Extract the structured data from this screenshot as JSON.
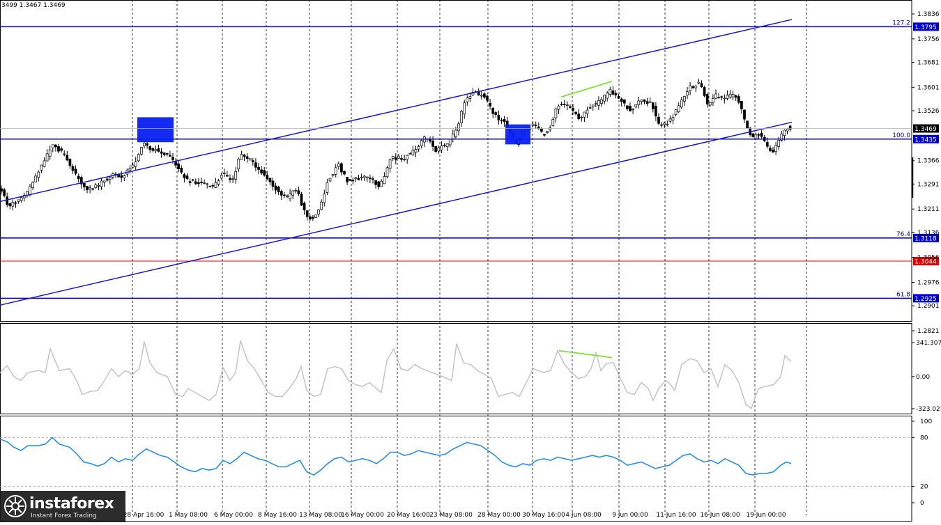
{
  "header": {
    "ohlc_text": "3499 1.3467 1.3469"
  },
  "watermark": {
    "brand": "instaforex",
    "tagline": "Instant Forex Trading"
  },
  "colors": {
    "candle": "#000000",
    "level_line": "#0000cc",
    "support_line": "#e00000",
    "channel": "#1a1acc",
    "divergence": "#7fe03c",
    "box": "#0a20f0",
    "cci_line": "#c0c0c0",
    "rsi_line": "#2a8fe8",
    "grid": "#000000"
  },
  "chart_data": [
    {
      "type": "candlestick",
      "name": "price",
      "ylim": [
        1.2821,
        1.3836
      ],
      "y_ticks": [
        "1.3836",
        "1.3756",
        "1.3681",
        "1.3601",
        "1.3526",
        "1.3366",
        "1.3291",
        "1.3211",
        "1.3136",
        "1.3056",
        "1.2976",
        "1.2901",
        "1.2821"
      ],
      "x_ticks": [
        "28 Apr 16:00",
        "1 May 08:00",
        "6 May 00:00",
        "8 May 16:00",
        "13 May 08:00",
        "16 May 00:00",
        "20 May 16:00",
        "23 May 08:00",
        "28 May 00:00",
        "30 May 16:00",
        "4 Jun 08:00",
        "9 Jun 00:00",
        "11 Jun 16:00",
        "16 Jun 08:00",
        "19 Jun 00:00"
      ],
      "current_price": "1.3469",
      "levels": [
        {
          "value": 1.3795,
          "label": "1.3795",
          "fib": "127.2"
        },
        {
          "value": 1.3435,
          "label": "1.3435",
          "fib": "100.0"
        },
        {
          "value": 1.3118,
          "label": "1.3118",
          "fib": "76.4"
        },
        {
          "value": 1.3044,
          "label": "1.3044",
          "fib": ""
        },
        {
          "value": 1.2925,
          "label": "1.2925",
          "fib": "61.8"
        }
      ],
      "path": [
        [
          0,
          1.328
        ],
        [
          12,
          1.322
        ],
        [
          25,
          1.3235
        ],
        [
          40,
          1.3265
        ],
        [
          55,
          1.333
        ],
        [
          75,
          1.3415
        ],
        [
          90,
          1.339
        ],
        [
          110,
          1.3315
        ],
        [
          125,
          1.3275
        ],
        [
          140,
          1.3285
        ],
        [
          160,
          1.332
        ],
        [
          175,
          1.3315
        ],
        [
          190,
          1.335
        ],
        [
          200,
          1.3385
        ],
        [
          205,
          1.3425
        ],
        [
          215,
          1.3405
        ],
        [
          230,
          1.3395
        ],
        [
          245,
          1.3375
        ],
        [
          255,
          1.334
        ],
        [
          270,
          1.33
        ],
        [
          290,
          1.3295
        ],
        [
          305,
          1.328
        ],
        [
          320,
          1.3325
        ],
        [
          333,
          1.33
        ],
        [
          345,
          1.3385
        ],
        [
          360,
          1.3365
        ],
        [
          375,
          1.333
        ],
        [
          390,
          1.329
        ],
        [
          410,
          1.3245
        ],
        [
          425,
          1.3275
        ],
        [
          437,
          1.32
        ],
        [
          448,
          1.3175
        ],
        [
          460,
          1.322
        ],
        [
          470,
          1.33
        ],
        [
          485,
          1.3355
        ],
        [
          498,
          1.33
        ],
        [
          515,
          1.331
        ],
        [
          530,
          1.3315
        ],
        [
          545,
          1.328
        ],
        [
          560,
          1.3375
        ],
        [
          580,
          1.3375
        ],
        [
          598,
          1.3405
        ],
        [
          610,
          1.3445
        ],
        [
          625,
          1.34
        ],
        [
          640,
          1.3415
        ],
        [
          655,
          1.3465
        ],
        [
          668,
          1.3565
        ],
        [
          680,
          1.3585
        ],
        [
          695,
          1.357
        ],
        [
          710,
          1.351
        ],
        [
          725,
          1.3485
        ],
        [
          740,
          1.342
        ],
        [
          752,
          1.3465
        ],
        [
          765,
          1.348
        ],
        [
          780,
          1.345
        ],
        [
          790,
          1.3475
        ],
        [
          800,
          1.3545
        ],
        [
          815,
          1.354
        ],
        [
          830,
          1.35
        ],
        [
          845,
          1.3535
        ],
        [
          860,
          1.3555
        ],
        [
          875,
          1.359
        ],
        [
          890,
          1.356
        ],
        [
          905,
          1.3525
        ],
        [
          920,
          1.356
        ],
        [
          935,
          1.355
        ],
        [
          945,
          1.348
        ],
        [
          960,
          1.349
        ],
        [
          975,
          1.3545
        ],
        [
          990,
          1.36
        ],
        [
          1005,
          1.3615
        ],
        [
          1015,
          1.3545
        ],
        [
          1025,
          1.3575
        ],
        [
          1040,
          1.3565
        ],
        [
          1050,
          1.358
        ],
        [
          1062,
          1.355
        ],
        [
          1070,
          1.3475
        ],
        [
          1080,
          1.344
        ],
        [
          1090,
          1.3455
        ],
        [
          1100,
          1.341
        ],
        [
          1108,
          1.3395
        ],
        [
          1120,
          1.3445
        ],
        [
          1130,
          1.3475
        ],
        [
          1136,
          1.3469
        ]
      ],
      "channel_lines": [
        {
          "from": [
            0,
            1.3235
          ],
          "to": [
            1136,
            1.3818
          ]
        },
        {
          "from": [
            0,
            1.2903
          ],
          "to": [
            1136,
            1.3489
          ]
        }
      ],
      "boxes": [
        {
          "from": [
            197,
            1.3505
          ],
          "to": [
            249,
            1.3425
          ]
        },
        {
          "from": [
            725,
            1.3482
          ],
          "to": [
            761,
            1.3418
          ]
        }
      ],
      "divergence": {
        "from": [
          805,
          1.357
        ],
        "to": [
          878,
          1.362
        ]
      }
    },
    {
      "type": "line",
      "name": "CCI",
      "ylim": [
        -323.021,
        341.3079
      ],
      "y_ticks": [
        "341.3079",
        "0.00",
        "-323.021"
      ],
      "values": [
        [
          0,
          40
        ],
        [
          10,
          110
        ],
        [
          20,
          0
        ],
        [
          30,
          -40
        ],
        [
          40,
          40
        ],
        [
          55,
          60
        ],
        [
          65,
          40
        ],
        [
          72,
          280
        ],
        [
          85,
          60
        ],
        [
          100,
          80
        ],
        [
          110,
          -40
        ],
        [
          118,
          -180
        ],
        [
          130,
          -150
        ],
        [
          140,
          -140
        ],
        [
          150,
          -40
        ],
        [
          160,
          80
        ],
        [
          170,
          0
        ],
        [
          180,
          60
        ],
        [
          190,
          20
        ],
        [
          200,
          80
        ],
        [
          207,
          350
        ],
        [
          215,
          140
        ],
        [
          225,
          40
        ],
        [
          240,
          0
        ],
        [
          252,
          -180
        ],
        [
          262,
          -200
        ],
        [
          270,
          -120
        ],
        [
          280,
          -160
        ],
        [
          290,
          -200
        ],
        [
          300,
          -240
        ],
        [
          310,
          -180
        ],
        [
          320,
          90
        ],
        [
          330,
          -40
        ],
        [
          338,
          40
        ],
        [
          345,
          360
        ],
        [
          355,
          160
        ],
        [
          365,
          80
        ],
        [
          375,
          -40
        ],
        [
          385,
          -160
        ],
        [
          395,
          -200
        ],
        [
          405,
          -200
        ],
        [
          415,
          -120
        ],
        [
          425,
          -20
        ],
        [
          432,
          100
        ],
        [
          440,
          -140
        ],
        [
          450,
          -200
        ],
        [
          460,
          -180
        ],
        [
          470,
          80
        ],
        [
          480,
          100
        ],
        [
          490,
          80
        ],
        [
          500,
          -40
        ],
        [
          510,
          -80
        ],
        [
          520,
          -100
        ],
        [
          530,
          -60
        ],
        [
          540,
          -120
        ],
        [
          547,
          -160
        ],
        [
          555,
          160
        ],
        [
          565,
          280
        ],
        [
          575,
          80
        ],
        [
          585,
          60
        ],
        [
          595,
          120
        ],
        [
          605,
          80
        ],
        [
          620,
          40
        ],
        [
          635,
          0
        ],
        [
          648,
          -40
        ],
        [
          655,
          330
        ],
        [
          665,
          140
        ],
        [
          675,
          120
        ],
        [
          685,
          60
        ],
        [
          695,
          20
        ],
        [
          705,
          -20
        ],
        [
          715,
          -200
        ],
        [
          725,
          -180
        ],
        [
          735,
          -160
        ],
        [
          745,
          -200
        ],
        [
          755,
          -60
        ],
        [
          765,
          80
        ],
        [
          780,
          40
        ],
        [
          790,
          60
        ],
        [
          800,
          260
        ],
        [
          810,
          120
        ],
        [
          820,
          40
        ],
        [
          830,
          -20
        ],
        [
          840,
          0
        ],
        [
          848,
          80
        ],
        [
          855,
          240
        ],
        [
          862,
          60
        ],
        [
          870,
          130
        ],
        [
          880,
          140
        ],
        [
          890,
          -20
        ],
        [
          900,
          -160
        ],
        [
          910,
          -180
        ],
        [
          920,
          -60
        ],
        [
          930,
          -120
        ],
        [
          937,
          -240
        ],
        [
          945,
          -120
        ],
        [
          955,
          -40
        ],
        [
          962,
          -80
        ],
        [
          968,
          -140
        ],
        [
          978,
          120
        ],
        [
          990,
          180
        ],
        [
          1000,
          160
        ],
        [
          1010,
          40
        ],
        [
          1020,
          80
        ],
        [
          1030,
          -100
        ],
        [
          1040,
          120
        ],
        [
          1050,
          60
        ],
        [
          1060,
          -60
        ],
        [
          1070,
          -280
        ],
        [
          1078,
          -320
        ],
        [
          1088,
          -120
        ],
        [
          1098,
          -100
        ],
        [
          1110,
          -80
        ],
        [
          1120,
          0
        ],
        [
          1126,
          210
        ],
        [
          1135,
          150
        ]
      ]
    },
    {
      "type": "line",
      "name": "RSI",
      "ylim": [
        0,
        100
      ],
      "y_ticks": [
        "100",
        "80",
        "20",
        "0"
      ],
      "values": [
        [
          0,
          78
        ],
        [
          10,
          75
        ],
        [
          20,
          68
        ],
        [
          30,
          64
        ],
        [
          40,
          70
        ],
        [
          55,
          70
        ],
        [
          65,
          72
        ],
        [
          75,
          80
        ],
        [
          85,
          72
        ],
        [
          100,
          68
        ],
        [
          110,
          60
        ],
        [
          120,
          50
        ],
        [
          130,
          48
        ],
        [
          140,
          45
        ],
        [
          150,
          48
        ],
        [
          160,
          56
        ],
        [
          170,
          50
        ],
        [
          180,
          54
        ],
        [
          190,
          52
        ],
        [
          200,
          60
        ],
        [
          210,
          66
        ],
        [
          220,
          62
        ],
        [
          230,
          58
        ],
        [
          240,
          56
        ],
        [
          250,
          50
        ],
        [
          260,
          44
        ],
        [
          270,
          40
        ],
        [
          280,
          38
        ],
        [
          290,
          42
        ],
        [
          300,
          40
        ],
        [
          310,
          42
        ],
        [
          320,
          52
        ],
        [
          330,
          48
        ],
        [
          340,
          54
        ],
        [
          350,
          62
        ],
        [
          360,
          58
        ],
        [
          370,
          54
        ],
        [
          380,
          52
        ],
        [
          390,
          48
        ],
        [
          400,
          44
        ],
        [
          410,
          44
        ],
        [
          420,
          48
        ],
        [
          430,
          52
        ],
        [
          440,
          38
        ],
        [
          450,
          34
        ],
        [
          460,
          40
        ],
        [
          470,
          48
        ],
        [
          480,
          54
        ],
        [
          490,
          56
        ],
        [
          500,
          50
        ],
        [
          510,
          52
        ],
        [
          520,
          54
        ],
        [
          530,
          52
        ],
        [
          540,
          48
        ],
        [
          550,
          54
        ],
        [
          560,
          62
        ],
        [
          570,
          62
        ],
        [
          580,
          58
        ],
        [
          590,
          60
        ],
        [
          600,
          64
        ],
        [
          610,
          62
        ],
        [
          620,
          60
        ],
        [
          630,
          58
        ],
        [
          640,
          60
        ],
        [
          650,
          66
        ],
        [
          660,
          70
        ],
        [
          670,
          74
        ],
        [
          680,
          72
        ],
        [
          690,
          70
        ],
        [
          700,
          64
        ],
        [
          710,
          58
        ],
        [
          720,
          50
        ],
        [
          730,
          46
        ],
        [
          740,
          44
        ],
        [
          750,
          48
        ],
        [
          760,
          46
        ],
        [
          770,
          52
        ],
        [
          780,
          54
        ],
        [
          790,
          52
        ],
        [
          800,
          56
        ],
        [
          810,
          54
        ],
        [
          820,
          52
        ],
        [
          830,
          54
        ],
        [
          840,
          56
        ],
        [
          850,
          58
        ],
        [
          860,
          56
        ],
        [
          870,
          58
        ],
        [
          880,
          56
        ],
        [
          890,
          52
        ],
        [
          900,
          46
        ],
        [
          910,
          48
        ],
        [
          920,
          50
        ],
        [
          930,
          46
        ],
        [
          940,
          42
        ],
        [
          950,
          44
        ],
        [
          960,
          46
        ],
        [
          970,
          52
        ],
        [
          980,
          58
        ],
        [
          990,
          60
        ],
        [
          1000,
          54
        ],
        [
          1010,
          50
        ],
        [
          1020,
          52
        ],
        [
          1030,
          48
        ],
        [
          1040,
          54
        ],
        [
          1050,
          50
        ],
        [
          1060,
          46
        ],
        [
          1070,
          36
        ],
        [
          1080,
          34
        ],
        [
          1090,
          36
        ],
        [
          1100,
          36
        ],
        [
          1110,
          38
        ],
        [
          1120,
          46
        ],
        [
          1128,
          50
        ],
        [
          1135,
          48
        ]
      ]
    }
  ]
}
